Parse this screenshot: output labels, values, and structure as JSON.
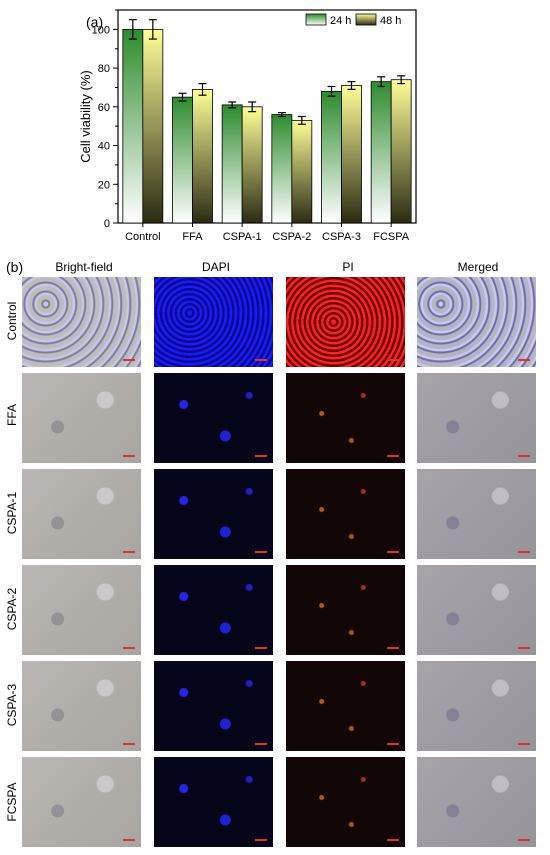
{
  "panel_a_label": "(a)",
  "panel_b_label": "(b)",
  "colors": {
    "h24_top": "#2e8b2e",
    "h24_bottom": "#ffffff",
    "h48_top": "#ffff99",
    "h48_bottom": "#2b2b14"
  },
  "chart_data": {
    "type": "bar",
    "title": "",
    "xlabel": "",
    "ylabel": "Cell viability (%)",
    "ylim": [
      0,
      110
    ],
    "yticks": [
      0,
      20,
      40,
      60,
      80,
      100
    ],
    "categories": [
      "Control",
      "FFA",
      "CSPA-1",
      "CSPA-2",
      "CSPA-3",
      "FCSPA"
    ],
    "series": [
      {
        "name": "24 h",
        "values": [
          100,
          65,
          61,
          56,
          68,
          73
        ],
        "errors": [
          5,
          2,
          1.5,
          1,
          2.5,
          2.5
        ]
      },
      {
        "name": "48 h",
        "values": [
          100,
          69,
          60,
          53,
          71,
          74
        ],
        "errors": [
          5,
          3,
          2.5,
          2,
          2,
          2
        ]
      }
    ],
    "legend_position": "top-right"
  },
  "grid": {
    "columns": [
      "Bright-field",
      "DAPI",
      "PI",
      "Merged"
    ],
    "rows": [
      "Control",
      "FFA",
      "CSPA-1",
      "CSPA-2",
      "CSPA-3",
      "FCSPA"
    ]
  }
}
